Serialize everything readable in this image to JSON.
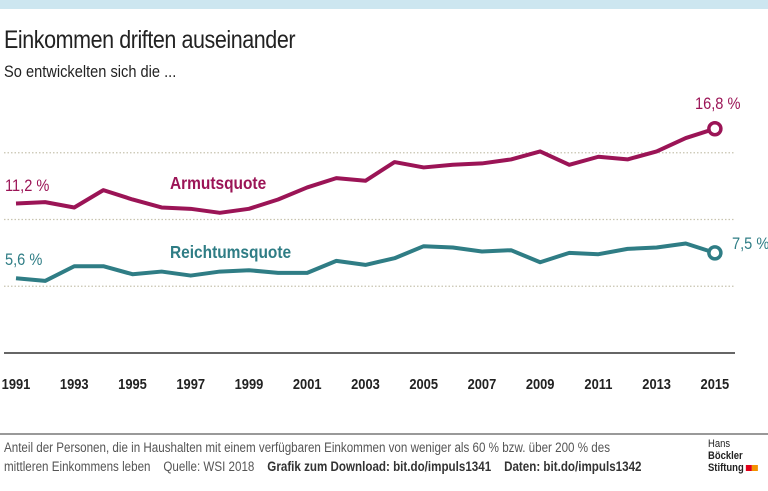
{
  "header": {
    "title": "Einkommen driften auseinander",
    "subtitle": "So entwickelten sich die ..."
  },
  "chart_data": {
    "type": "line",
    "x": [
      1991,
      1992,
      1993,
      1994,
      1995,
      1996,
      1997,
      1998,
      1999,
      2000,
      2001,
      2002,
      2003,
      2004,
      2005,
      2006,
      2007,
      2008,
      2009,
      2010,
      2011,
      2012,
      2013,
      2014,
      2015
    ],
    "xticks": [
      "1991",
      "1993",
      "1995",
      "1997",
      "1999",
      "2001",
      "2003",
      "2005",
      "2007",
      "2009",
      "2011",
      "2013",
      "2015"
    ],
    "ylim": [
      0,
      17
    ],
    "grid_y": [
      0,
      5,
      10,
      15
    ],
    "grid": true,
    "series": [
      {
        "name": "Armutsquote",
        "color": "#9b1456",
        "start_label": "11,2 %",
        "end_label": "16,8 %",
        "values": [
          11.2,
          11.3,
          10.9,
          12.2,
          11.5,
          10.9,
          10.8,
          10.5,
          10.8,
          11.5,
          12.4,
          13.1,
          12.9,
          14.3,
          13.9,
          14.1,
          14.2,
          14.5,
          15.1,
          14.1,
          14.7,
          14.5,
          15.1,
          16.1,
          16.8
        ]
      },
      {
        "name": "Reichtumsquote",
        "color": "#2f7d85",
        "start_label": "5,6 %",
        "end_label": "7,5 %",
        "values": [
          5.6,
          5.4,
          6.5,
          6.5,
          5.9,
          6.1,
          5.8,
          6.1,
          6.2,
          6.0,
          6.0,
          6.9,
          6.6,
          7.1,
          8.0,
          7.9,
          7.6,
          7.7,
          6.8,
          7.5,
          7.4,
          7.8,
          7.9,
          8.2,
          7.5
        ]
      }
    ]
  },
  "footer": {
    "line1": "Anteil der Personen, die in Haushalten mit einem verfügbaren Einkommen von weniger als 60 % bzw. über 200 % des",
    "line2": "mittleren Einkommens leben",
    "source": "Quelle: WSI 2018",
    "download": "Grafik zum Download: bit.do/impuls1341",
    "data": "Daten: bit.do/impuls1342",
    "logo_line1_a": "Hans",
    "logo_line1_b": "Böckler",
    "logo_line2": "Stiftung"
  }
}
